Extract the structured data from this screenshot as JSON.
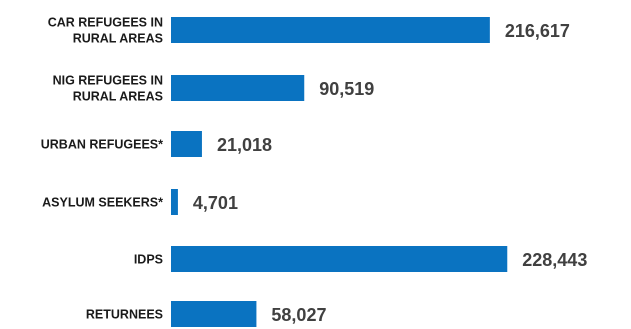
{
  "chart_data": {
    "type": "bar",
    "orientation": "horizontal",
    "categories": [
      [
        "CAR REFUGEES IN",
        "RURAL AREAS"
      ],
      [
        "NIG REFUGEES IN",
        "RURAL AREAS"
      ],
      [
        "URBAN REFUGEES*"
      ],
      [
        "ASYLUM SEEKERS*"
      ],
      [
        "IDPS"
      ],
      [
        "RETURNEES"
      ]
    ],
    "values": [
      216617,
      90519,
      21018,
      4701,
      228443,
      58027
    ],
    "value_labels": [
      "216,617",
      "90,519",
      "21,018",
      "4,701",
      "228,443",
      "58,027"
    ],
    "bar_color": "#0a73c1",
    "title": "",
    "xlabel": "",
    "ylabel": "",
    "grid": false,
    "legend": "none"
  }
}
